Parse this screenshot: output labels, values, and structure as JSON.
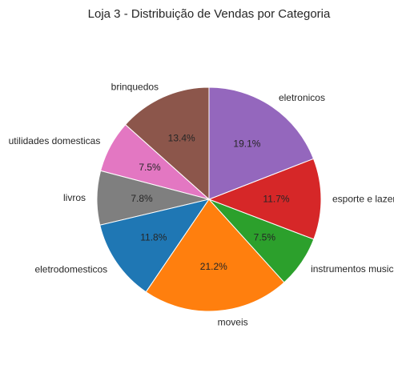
{
  "chart_data": {
    "type": "pie",
    "title": "Loja 3 - Distribuição de Vendas por Categoria",
    "start_angle_deg": 90,
    "direction": "counterclockwise",
    "slices": [
      {
        "label": "brinquedos",
        "value": 13.4,
        "pct_label": "13.4%",
        "color": "#8c564b"
      },
      {
        "label": "utilidades domesticas",
        "value": 7.5,
        "pct_label": "7.5%",
        "color": "#e377c2"
      },
      {
        "label": "livros",
        "value": 7.8,
        "pct_label": "7.8%",
        "color": "#7f7f7f"
      },
      {
        "label": "eletrodomesticos",
        "value": 11.8,
        "pct_label": "11.8%",
        "color": "#1f77b4"
      },
      {
        "label": "moveis",
        "value": 21.2,
        "pct_label": "21.2%",
        "color": "#ff7f0e"
      },
      {
        "label": "instrumentos musicais",
        "value": 7.5,
        "pct_label": "7.5%",
        "color": "#2ca02c"
      },
      {
        "label": "esporte e lazer",
        "value": 11.7,
        "pct_label": "11.7%",
        "color": "#d62728"
      },
      {
        "label": "eletronicos",
        "value": 19.1,
        "pct_label": "19.1%",
        "color": "#9467bd"
      }
    ]
  }
}
